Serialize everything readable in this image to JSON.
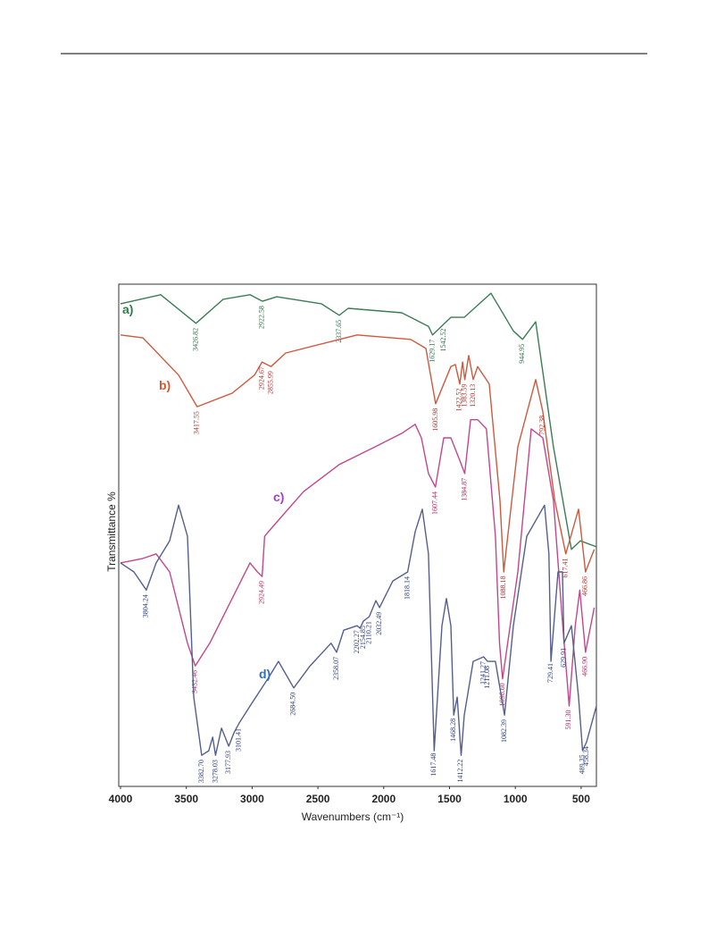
{
  "chart_data": {
    "type": "line",
    "xlabel": "Wavenumbers (cm⁻¹)",
    "ylabel": "Transmittance %",
    "xlim": [
      4000,
      384
    ],
    "ylim": [
      0,
      100
    ],
    "xticks": [
      4000,
      3500,
      3000,
      2500,
      2000,
      1500,
      1000,
      500
    ],
    "grid": false,
    "series": [
      {
        "name": "a)",
        "color": "#3b7d55",
        "name_color": "#2e7d4f",
        "label_color": "#2e6b45",
        "x": [
          4000,
          3695,
          3427,
          3220,
          3016,
          2922,
          2813,
          2474,
          2338,
          2270,
          1863,
          1660,
          1629,
          1490,
          1388,
          1185,
          1015,
          945,
          845,
          710,
          574,
          506,
          384
        ],
        "values": [
          96.1,
          97.9,
          92.2,
          97.0,
          97.9,
          96.6,
          97.5,
          96.1,
          93.8,
          95.2,
          94.3,
          91.6,
          89.9,
          93.4,
          93.4,
          98.2,
          90.7,
          89.0,
          92.5,
          67.6,
          47.2,
          48.9,
          47.7
        ],
        "peaks": [
          3426.82,
          2922.58,
          2337.65,
          1629.17,
          1542.52,
          944.95
        ]
      },
      {
        "name": "b)",
        "color": "#cc5a3e",
        "name_color": "#d9542f",
        "label_color": "#b0302a",
        "x": [
          4000,
          3830,
          3559,
          3418,
          3152,
          2982,
          2925,
          2856,
          2745,
          2202,
          1795,
          1680,
          1606,
          1490,
          1456,
          1422,
          1401,
          1384,
          1354,
          1320,
          1286,
          1198,
          1117,
          1088,
          981,
          845,
          792,
          700,
          617,
          520,
          467,
          400
        ],
        "values": [
          89.9,
          89.3,
          81.9,
          75.6,
          78.3,
          81.9,
          84.5,
          83.6,
          86.3,
          89.9,
          89.0,
          87.2,
          76.2,
          83.6,
          84.0,
          80.1,
          84.5,
          81.0,
          85.8,
          81.0,
          83.6,
          80.1,
          56.9,
          42.7,
          67.6,
          81.0,
          74.7,
          56.9,
          46.3,
          55.2,
          42.7,
          47.2
        ],
        "peaks": [
          3417.55,
          2924.67,
          2855.99,
          1605.98,
          1422.52,
          1383.59,
          1320.13,
          1088.18,
          792.38,
          617.41,
          466.86
        ]
      },
      {
        "name": "c)",
        "color": "#c2478c",
        "name_color": "#a63fc4",
        "label_color": "#b0255e",
        "x": [
          4000,
          3830,
          3729,
          3627,
          3491,
          3432,
          3322,
          3152,
          3016,
          2960,
          2924,
          2905,
          2847,
          2609,
          2338,
          2067,
          1863,
          1761,
          1714,
          1660,
          1607,
          1544,
          1490,
          1422,
          1385,
          1340,
          1286,
          1220,
          1151,
          1120,
          1097,
          981,
          879,
          791,
          710,
          640,
          591,
          545,
          510,
          467,
          400
        ],
        "values": [
          44.5,
          45.4,
          46.3,
          42.7,
          28.5,
          24.0,
          28.5,
          37.4,
          44.5,
          42.7,
          41.8,
          49.8,
          51.6,
          58.7,
          64.1,
          67.6,
          70.3,
          72.1,
          69.4,
          62.3,
          59.6,
          69.4,
          69.4,
          64.9,
          62.3,
          73.0,
          73.0,
          71.2,
          49.8,
          28.5,
          21.4,
          42.7,
          71.2,
          69.4,
          56.9,
          32.0,
          16.0,
          32.0,
          39.1,
          26.7,
          35.6
        ],
        "peaks": [
          3432.46,
          2924.49,
          1607.44,
          1384.87,
          {
            "value": 1096.6,
            "label": "1096.60"
          },
          {
            "value": 591.3,
            "label": "591.30"
          },
          {
            "value": 466.9,
            "label": "466.90"
          }
        ]
      },
      {
        "name": "d)",
        "color": "#555f8d",
        "name_color": "#2f6fc0",
        "label_color": "#2a3a7a",
        "x": [
          4000,
          3898,
          3804,
          3729,
          3627,
          3559,
          3491,
          3444,
          3383,
          3330,
          3300,
          3278,
          3233,
          3178,
          3138,
          3101,
          3016,
          2881,
          2800,
          2684,
          2560,
          2400,
          2358,
          2304,
          2202,
          2180,
          2155,
          2110,
          2060,
          2032,
          1931,
          1818,
          1761,
          1707,
          1660,
          1617,
          1558,
          1524,
          1490,
          1468,
          1442,
          1412,
          1388,
          1320,
          1241,
          1211,
          1151,
          1082,
          1015,
          913,
          778,
          745,
          729,
          676,
          642,
          630,
          574,
          520,
          489,
          458,
          384
        ],
        "values": [
          44.5,
          42.7,
          39.1,
          44.5,
          48.9,
          56.0,
          49.8,
          17.8,
          6.2,
          7.1,
          9.8,
          6.2,
          11.6,
          8.0,
          10.7,
          12.5,
          16.0,
          21.4,
          24.9,
          19.6,
          24.0,
          28.5,
          26.7,
          31.1,
          32.0,
          31.5,
          32.9,
          33.8,
          37.0,
          35.6,
          40.9,
          42.7,
          50.7,
          55.2,
          46.3,
          7.1,
          32.0,
          37.4,
          32.0,
          14.2,
          17.8,
          6.2,
          14.2,
          24.9,
          25.8,
          24.9,
          24.9,
          14.2,
          32.0,
          49.8,
          56.0,
          46.3,
          24.9,
          42.7,
          42.7,
          28.5,
          32.0,
          17.8,
          7.1,
          8.9,
          16.0
        ],
        "peaks": [
          3804.24,
          {
            "value": 3382.7,
            "label": "3382.70"
          },
          3278.03,
          3177.93,
          3101.41,
          {
            "value": 2684.5,
            "label": "2684.50"
          },
          2358.07,
          2202.27,
          2154.85,
          2110.21,
          2032.49,
          1818.14,
          1617.48,
          1468.28,
          1412.22,
          1241.27,
          1211.08,
          1082.39,
          729.41,
          629.91,
          489.35,
          458.34
        ]
      }
    ]
  }
}
